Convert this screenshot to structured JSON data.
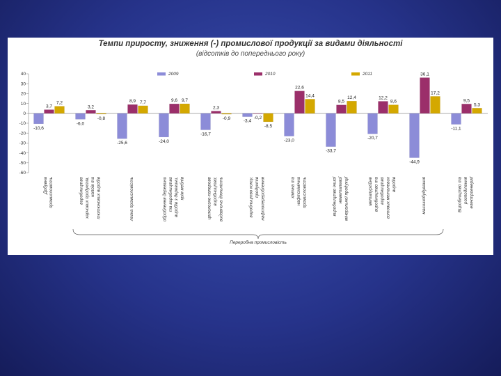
{
  "chart_data": {
    "type": "bar",
    "title": "Темпи приросту, зниження (-) промислової продукції за видами діяльності",
    "subtitle": "(відсотків до попереднього року)",
    "ylim": [
      -60,
      40
    ],
    "yticks": [
      40,
      30,
      20,
      10,
      0,
      -10,
      -20,
      -30,
      -40,
      -50,
      -60
    ],
    "ytick_labels": [
      "40",
      "30",
      "20",
      "10",
      "0",
      "-10",
      "-20",
      "-30",
      "-40",
      "-50",
      "-60"
    ],
    "series": [
      {
        "name": "2009",
        "color": "#8c8cd8",
        "values": [
          -10.6,
          -6.0,
          -25.6,
          -24.0,
          -16.7,
          -3.4,
          -23.0,
          -33.7,
          -20.7,
          -44.9,
          -11.1
        ],
        "labels": [
          "-10,6",
          "-6,0",
          "-25,6",
          "-24,0",
          "-16,7",
          "-3,4",
          "-23,0",
          "-33,7",
          "-20,7",
          "-44,9",
          "-11,1"
        ]
      },
      {
        "name": "2010",
        "color": "#9b2f6a",
        "values": [
          3.7,
          3.2,
          8.9,
          9.6,
          2.3,
          -0.2,
          22.6,
          8.5,
          12.2,
          36.1,
          9.5
        ],
        "labels": [
          "3,7",
          "3,2",
          "8,9",
          "9,6",
          "2,3",
          "-0,2",
          "22,6",
          "8,5",
          "12,2",
          "36,1",
          "9,5"
        ]
      },
      {
        "name": "2011",
        "color": "#d4a800",
        "values": [
          7.2,
          -0.8,
          7.7,
          9.7,
          -0.9,
          -8.5,
          14.4,
          12.4,
          8.6,
          17.2,
          5.3
        ],
        "labels": [
          "7,2",
          "-0,8",
          "7,7",
          "9,7",
          "-0,9",
          "-8,5",
          "14,4",
          "12,4",
          "8,6",
          "17,2",
          "5,3"
        ]
      }
    ],
    "categories": [
      [
        "Добувна",
        "промисловість"
      ],
      [
        "виробництво",
        "харчових продуктів,",
        "напоїв та",
        "тютюнових виробів"
      ],
      [
        "легка промисловість"
      ],
      [
        "оброблення деревини",
        "та виробництво",
        "виробів з деревини,",
        "крім меблів"
      ],
      [
        "целюлозно-паперове",
        "виробництво;",
        "видавнича діяльність"
      ],
      [
        "виробництво коксу,",
        "продуктів",
        "нафтоперероблення"
      ],
      [
        "хімічна та",
        "нафтохімічна",
        "промисловість"
      ],
      [
        "виробництво іншої",
        "неметалевої",
        "мінеральної продукції"
      ],
      [
        "металургійне",
        "виробництво та",
        "виробництво",
        "готових металевих",
        "виробів"
      ],
      [
        "машинобудування"
      ],
      [
        "Виробництво та",
        "розподілення",
        "електроенергії"
      ]
    ],
    "group_label": "Переробна промисловість"
  }
}
